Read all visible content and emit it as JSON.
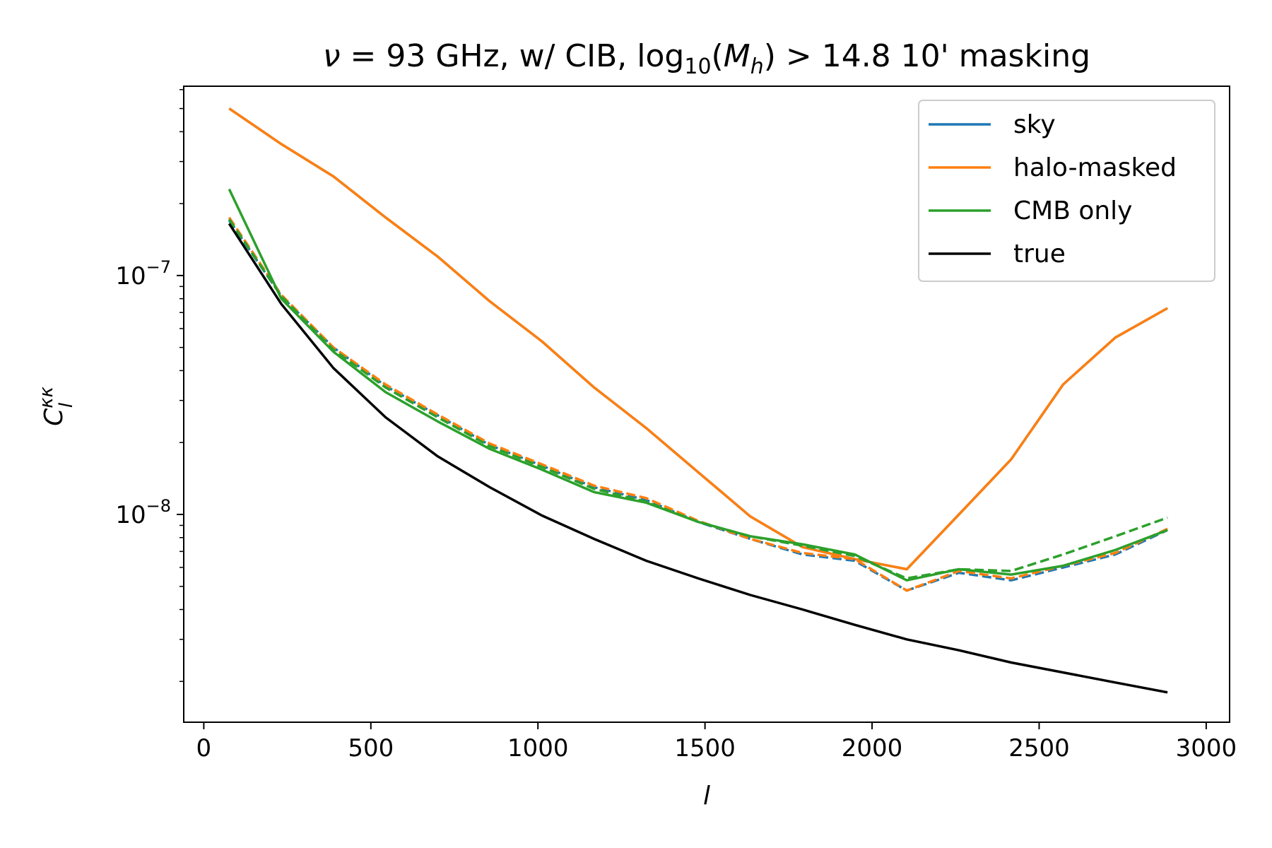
{
  "chart_data": {
    "type": "line",
    "title_parts": {
      "nu": "ν",
      "eq": " = 93 GHz, w/ CIB, log",
      "sub10": "10",
      "open": "(",
      "M": "M",
      "h": "h",
      "rest": ") > 14.8 10' masking"
    },
    "xlabel": "l",
    "ylabel_base": "C",
    "ylabel_sup": "κκ",
    "ylabel_sub": "l",
    "xlim": [
      -60,
      3070
    ],
    "ylim": [
      1.35e-09,
      6.2e-07
    ],
    "yscale": "log",
    "grid": false,
    "legend_position": "top-right",
    "x_ticks": [
      {
        "value": 0,
        "label": "0"
      },
      {
        "value": 500,
        "label": "500"
      },
      {
        "value": 1000,
        "label": "1000"
      },
      {
        "value": 1500,
        "label": "1500"
      },
      {
        "value": 2000,
        "label": "2000"
      },
      {
        "value": 2500,
        "label": "2500"
      },
      {
        "value": 3000,
        "label": "3000"
      }
    ],
    "y_ticks": [
      {
        "value": 1e-08,
        "base": "10",
        "exp": "−8"
      },
      {
        "value": 1e-07,
        "base": "10",
        "exp": "−7"
      }
    ],
    "x": [
      76,
      232,
      388,
      544,
      700,
      856,
      1012,
      1168,
      1324,
      1480,
      1636,
      1792,
      1948,
      2104,
      2260,
      2416,
      2572,
      2728,
      2884
    ],
    "series": [
      {
        "name": "sky",
        "color": "#1f77b4",
        "dash": "solid",
        "legend": true,
        "values": [
          5e-07,
          3.55e-07,
          2.6e-07,
          1.75e-07,
          1.2e-07,
          7.8e-08,
          5.3e-08,
          3.4e-08,
          2.3e-08,
          1.5e-08,
          9.8e-09,
          7.3e-09,
          6.5e-09,
          5.9e-09,
          1e-08,
          1.7e-08,
          3.5e-08,
          5.5e-08,
          7.3e-08
        ]
      },
      {
        "name": "halo-masked",
        "color": "#ff7f0e",
        "dash": "solid",
        "legend": true,
        "values": [
          5e-07,
          3.55e-07,
          2.6e-07,
          1.75e-07,
          1.2e-07,
          7.8e-08,
          5.3e-08,
          3.4e-08,
          2.3e-08,
          1.5e-08,
          9.8e-09,
          7.3e-09,
          6.5e-09,
          5.9e-09,
          1e-08,
          1.7e-08,
          3.5e-08,
          5.5e-08,
          7.3e-08
        ]
      },
      {
        "name": "sky-dashed",
        "color": "#1f77b4",
        "dash": "dashed",
        "legend": false,
        "values": [
          1.7e-07,
          8.2e-08,
          5e-08,
          3.45e-08,
          2.6e-08,
          1.95e-08,
          1.6e-08,
          1.3e-08,
          1.15e-08,
          9.3e-09,
          7.9e-09,
          6.8e-09,
          6.4e-09,
          4.8e-09,
          5.7e-09,
          5.3e-09,
          6e-09,
          6.8e-09,
          8.6e-09
        ]
      },
      {
        "name": "halo-masked-dashed",
        "color": "#ff7f0e",
        "dash": "dashed",
        "legend": false,
        "values": [
          1.75e-07,
          8.3e-08,
          5e-08,
          3.5e-08,
          2.62e-08,
          1.98e-08,
          1.62e-08,
          1.32e-08,
          1.17e-08,
          9.4e-09,
          7.9e-09,
          6.9e-09,
          6.5e-09,
          4.8e-09,
          5.8e-09,
          5.4e-09,
          6.1e-09,
          6.9e-09,
          8.7e-09
        ]
      },
      {
        "name": "CMB only-dashed",
        "color": "#2ca02c",
        "dash": "dashed",
        "legend": false,
        "values": [
          1.72e-07,
          8.2e-08,
          4.9e-08,
          3.4e-08,
          2.55e-08,
          1.93e-08,
          1.58e-08,
          1.28e-08,
          1.13e-08,
          9.3e-09,
          8.1e-09,
          7.4e-09,
          6.7e-09,
          5.4e-09,
          5.9e-09,
          5.8e-09,
          6.8e-09,
          8.1e-09,
          9.7e-09
        ]
      },
      {
        "name": "CMB only",
        "color": "#2ca02c",
        "dash": "solid",
        "legend": true,
        "values": [
          2.3e-07,
          8e-08,
          4.8e-08,
          3.25e-08,
          2.45e-08,
          1.88e-08,
          1.54e-08,
          1.24e-08,
          1.12e-08,
          9.3e-09,
          8.1e-09,
          7.5e-09,
          6.8e-09,
          5.3e-09,
          5.9e-09,
          5.6e-09,
          6.1e-09,
          7.1e-09,
          8.6e-09
        ]
      },
      {
        "name": "true",
        "color": "#000000",
        "dash": "solid",
        "legend": true,
        "values": [
          1.65e-07,
          7.6e-08,
          4.1e-08,
          2.55e-08,
          1.75e-08,
          1.3e-08,
          9.9e-09,
          7.9e-09,
          6.4e-09,
          5.4e-09,
          4.6e-09,
          4e-09,
          3.45e-09,
          3e-09,
          2.7e-09,
          2.4e-09,
          2.18e-09,
          1.98e-09,
          1.8e-09
        ]
      }
    ]
  }
}
